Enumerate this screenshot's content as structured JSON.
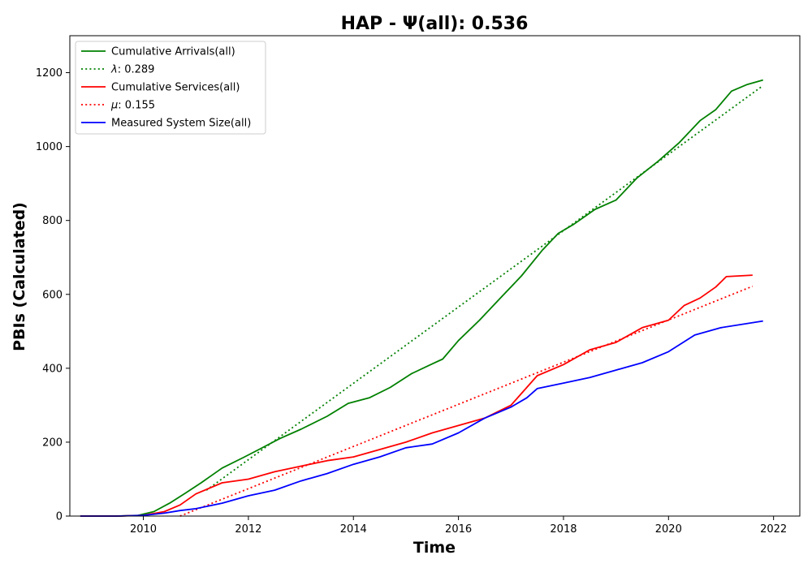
{
  "chart_data": {
    "type": "line",
    "title": "HAP -  Ψ(all): 0.536",
    "xlabel": "Time",
    "ylabel": "PBIs (Calculated)",
    "xlim": [
      2008.6,
      2022.5
    ],
    "ylim": [
      0,
      1300
    ],
    "x_ticks": [
      2010,
      2012,
      2014,
      2016,
      2018,
      2020,
      2022
    ],
    "x_tick_labels": [
      "2010",
      "2012",
      "2014",
      "2016",
      "2018",
      "2020",
      "2022"
    ],
    "y_ticks": [
      0,
      200,
      400,
      600,
      800,
      1000,
      1200
    ],
    "y_tick_labels": [
      "0",
      "200",
      "400",
      "600",
      "800",
      "1000",
      "1200"
    ],
    "grid": false,
    "legend_position": "top-left",
    "series": [
      {
        "name": "Cumulative Arrivals(all)",
        "label_prefix": "",
        "color": "#008000",
        "style": "solid",
        "x": [
          2008.8,
          2009.5,
          2009.9,
          2010.2,
          2010.5,
          2010.8,
          2011.1,
          2011.5,
          2011.9,
          2012.2,
          2012.6,
          2013.0,
          2013.5,
          2013.9,
          2014.3,
          2014.7,
          2015.1,
          2015.5,
          2015.7,
          2016.0,
          2016.4,
          2016.8,
          2017.2,
          2017.6,
          2017.9,
          2018.2,
          2018.6,
          2019.0,
          2019.4,
          2019.8,
          2020.2,
          2020.6,
          2020.9,
          2021.2,
          2021.5,
          2021.8
        ],
        "y": [
          0,
          0,
          2,
          12,
          35,
          62,
          90,
          130,
          158,
          180,
          210,
          235,
          270,
          305,
          320,
          348,
          385,
          412,
          425,
          475,
          530,
          590,
          650,
          720,
          765,
          790,
          830,
          855,
          915,
          960,
          1010,
          1070,
          1100,
          1150,
          1168,
          1180
        ]
      },
      {
        "name": "0.289",
        "label_prefix": "λ",
        "color": "#008000",
        "style": "dotted",
        "x": [
          2011.2,
          2021.8
        ],
        "y": [
          70,
          1165
        ]
      },
      {
        "name": "Cumulative Services(all)",
        "label_prefix": "",
        "color": "#ff0000",
        "style": "solid",
        "x": [
          2008.8,
          2009.5,
          2010.0,
          2010.4,
          2010.7,
          2011.0,
          2011.5,
          2012.0,
          2012.5,
          2013.0,
          2013.5,
          2014.0,
          2014.5,
          2015.0,
          2015.5,
          2016.0,
          2016.5,
          2017.0,
          2017.5,
          2018.0,
          2018.5,
          2019.0,
          2019.5,
          2020.0,
          2020.3,
          2020.6,
          2020.9,
          2021.1,
          2021.6
        ],
        "y": [
          0,
          0,
          2,
          12,
          30,
          60,
          90,
          100,
          120,
          135,
          150,
          160,
          180,
          200,
          225,
          245,
          265,
          300,
          380,
          410,
          450,
          470,
          510,
          530,
          570,
          590,
          620,
          648,
          652
        ]
      },
      {
        "name": "0.155",
        "label_prefix": "μ",
        "color": "#ff0000",
        "style": "dotted",
        "x": [
          2010.7,
          2021.6
        ],
        "y": [
          0,
          622
        ]
      },
      {
        "name": "Measured System Size(all)",
        "label_prefix": "",
        "color": "#0000ff",
        "style": "solid",
        "x": [
          2008.8,
          2009.5,
          2010.0,
          2010.4,
          2010.7,
          2011.0,
          2011.5,
          2012.0,
          2012.5,
          2013.0,
          2013.5,
          2014.0,
          2014.5,
          2015.0,
          2015.5,
          2016.0,
          2016.5,
          2017.0,
          2017.3,
          2017.5,
          2018.0,
          2018.5,
          2019.0,
          2019.5,
          2020.0,
          2020.5,
          2021.0,
          2021.8
        ],
        "y": [
          0,
          0,
          2,
          8,
          15,
          20,
          35,
          55,
          70,
          95,
          115,
          140,
          160,
          185,
          195,
          225,
          265,
          295,
          320,
          345,
          360,
          375,
          395,
          415,
          445,
          490,
          510,
          528
        ]
      }
    ]
  }
}
